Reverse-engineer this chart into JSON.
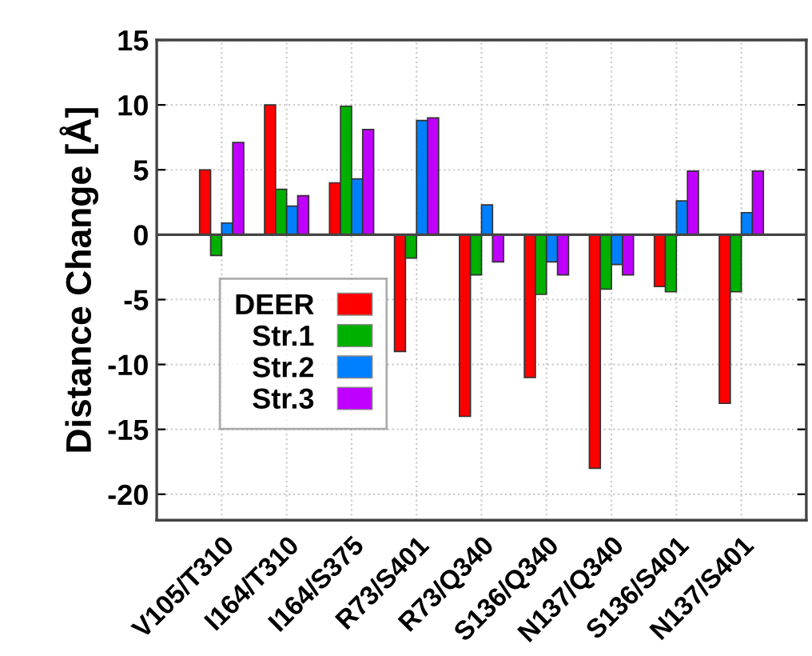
{
  "chart_data": {
    "type": "bar",
    "ylabel": "Distance Change [Å]",
    "categories": [
      "V105/T310",
      "I164/T310",
      "I164/S375",
      "R73/S401",
      "R73/Q340",
      "S136/Q340",
      "N137/Q340",
      "S136/S401",
      "N137/S401"
    ],
    "series": [
      {
        "name": "DEER",
        "color": "#ff0000",
        "values": [
          5,
          10,
          4,
          -9,
          -14,
          -11,
          -18,
          -4,
          -13
        ]
      },
      {
        "name": "Str.1",
        "color": "#00b000",
        "values": [
          -1.6,
          3.5,
          9.9,
          -1.8,
          -3.1,
          -4.6,
          -4.2,
          -4.4,
          -4.4
        ]
      },
      {
        "name": "Str.2",
        "color": "#0080ff",
        "values": [
          0.9,
          2.2,
          4.3,
          8.8,
          2.3,
          -2.1,
          -2.3,
          2.6,
          1.7
        ]
      },
      {
        "name": "Str.3",
        "color": "#c000ff",
        "values": [
          7.1,
          3,
          8.1,
          9,
          -2.1,
          -3.1,
          -3.1,
          4.9,
          4.9
        ]
      }
    ],
    "ylim": [
      -22,
      15
    ],
    "yticks": [
      -20,
      -15,
      -10,
      -5,
      0,
      5,
      10,
      15
    ],
    "grid": true,
    "legend": "bottom left"
  }
}
